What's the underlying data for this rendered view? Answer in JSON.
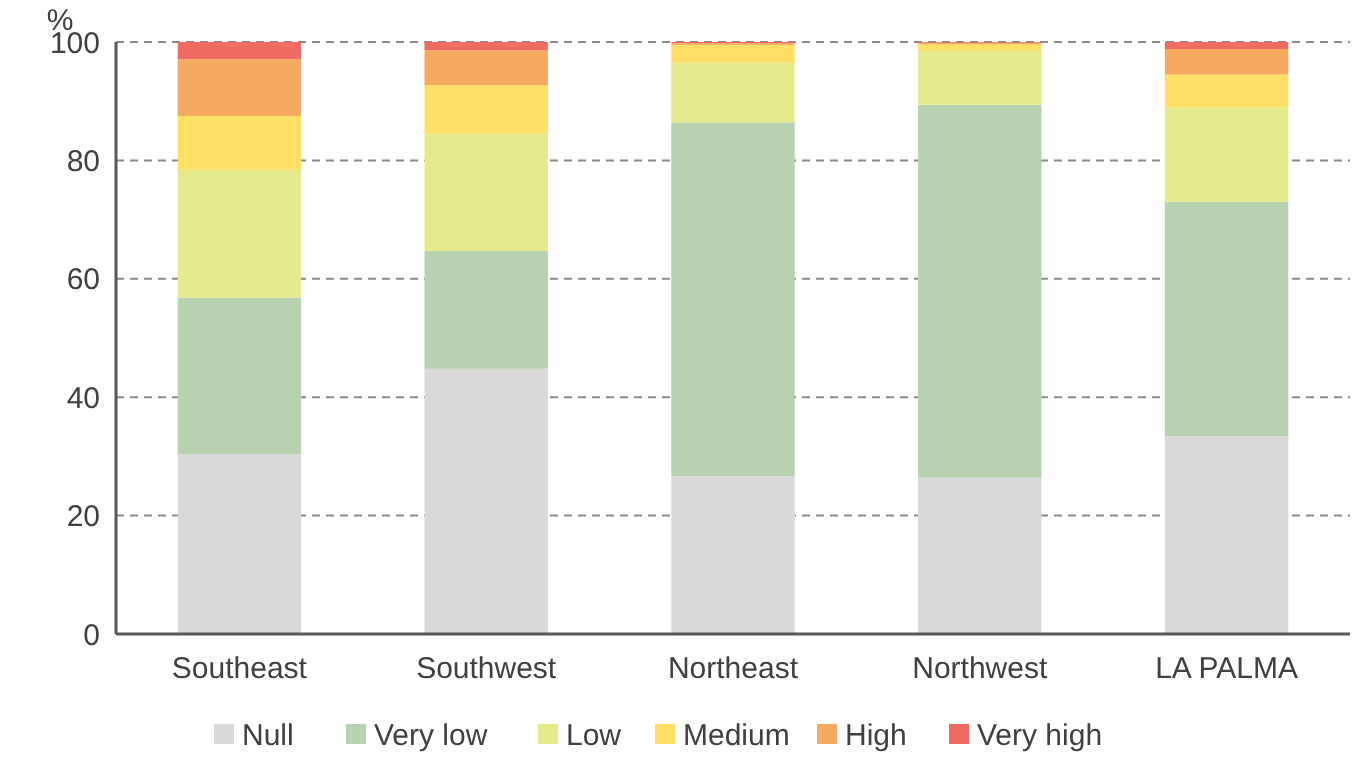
{
  "chart_data": {
    "type": "bar",
    "stacked": true,
    "ylabel": "%",
    "categories": [
      "Southeast",
      "Southwest",
      "Northeast",
      "Northwest",
      "LA PALMA"
    ],
    "series": [
      {
        "name": "Null",
        "color": "#d9d9d9",
        "values": [
          30.4,
          44.8,
          26.7,
          26.4,
          33.4
        ]
      },
      {
        "name": "Very low",
        "color": "#b7d1b1",
        "values": [
          26.4,
          19.9,
          59.7,
          63.0,
          39.6
        ]
      },
      {
        "name": "Low",
        "color": "#e5eb8c",
        "values": [
          21.6,
          19.8,
          10.1,
          9.1,
          16.0
        ]
      },
      {
        "name": "Medium",
        "color": "#ffe066",
        "values": [
          9.1,
          8.2,
          3.0,
          1.1,
          5.5
        ]
      },
      {
        "name": "High",
        "color": "#f6aa5f",
        "values": [
          9.6,
          5.9,
          0.3,
          0.3,
          4.3
        ]
      },
      {
        "name": "Very high",
        "color": "#ee6a63",
        "values": [
          2.9,
          1.4,
          0.2,
          0.1,
          1.2
        ]
      }
    ],
    "ylim": [
      0,
      100
    ],
    "yticks": [
      0,
      20,
      40,
      60,
      80,
      100
    ],
    "grid": "y",
    "legend": "bottom"
  }
}
